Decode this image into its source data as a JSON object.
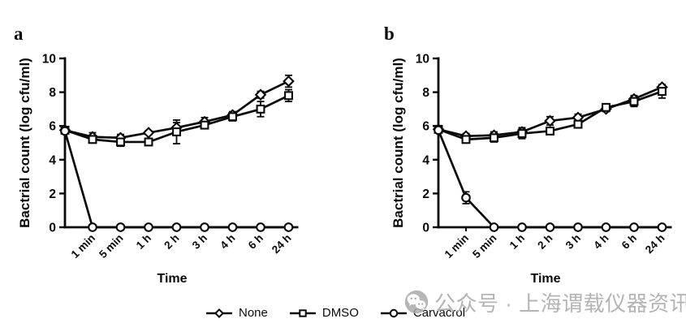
{
  "figure": {
    "background": "#ffffff",
    "line_color": "#0a0a0a"
  },
  "legend": {
    "position": "bottom",
    "items": [
      {
        "label": "None",
        "marker": "diamond"
      },
      {
        "label": "DMSO",
        "marker": "square"
      },
      {
        "label": "Carvacrol",
        "marker": "circle"
      }
    ]
  },
  "watermark": {
    "icon": "wechat-icon",
    "text": "公众号 · 上海谓载仪器资讯",
    "color": "#b4b4b4"
  },
  "chart_data": [
    {
      "type": "line",
      "panel_label": "a",
      "title": "",
      "xlabel": "Time",
      "ylabel": "Bactrial count (log cfu/ml)",
      "ylim": [
        0,
        10
      ],
      "yticks": [
        0,
        2,
        4,
        6,
        8,
        10
      ],
      "grid": false,
      "includes_time_zero_point_on_axis": true,
      "categories": [
        "1 min",
        "5 min",
        "1 h",
        "2 h",
        "3 h",
        "4 h",
        "6 h",
        "24 h"
      ],
      "series": [
        {
          "name": "None",
          "marker": "diamond",
          "values": [
            5.75,
            5.35,
            5.3,
            5.6,
            5.9,
            6.25,
            6.65,
            7.85,
            8.65
          ],
          "errors": [
            0.15,
            0.25,
            0.2,
            0.12,
            0.3,
            0.25,
            0.2,
            0.2,
            0.35
          ]
        },
        {
          "name": "DMSO",
          "marker": "square",
          "values": [
            5.75,
            5.2,
            5.05,
            5.05,
            5.65,
            6.05,
            6.55,
            7.0,
            7.8
          ],
          "errors": [
            0.15,
            0.2,
            0.25,
            0.15,
            0.7,
            0.2,
            0.25,
            0.45,
            0.35
          ]
        },
        {
          "name": "Carvacrol",
          "marker": "circle",
          "values": [
            5.7,
            0,
            0,
            0,
            0,
            0,
            0,
            0,
            0
          ],
          "errors": [
            0.15,
            0,
            0,
            0,
            0,
            0,
            0,
            0,
            0
          ]
        }
      ]
    },
    {
      "type": "line",
      "panel_label": "b",
      "title": "",
      "xlabel": "Time",
      "ylabel": "Bactrial count (log cfu/ml)",
      "ylim": [
        0,
        10
      ],
      "yticks": [
        0,
        2,
        4,
        6,
        8,
        10
      ],
      "grid": false,
      "includes_time_zero_point_on_axis": true,
      "categories": [
        "1 min",
        "5 min",
        "1 h",
        "2 h",
        "3 h",
        "4 h",
        "6 h",
        "24 h"
      ],
      "series": [
        {
          "name": "None",
          "marker": "diamond",
          "values": [
            5.8,
            5.4,
            5.45,
            5.65,
            6.3,
            6.5,
            7.0,
            7.6,
            8.3
          ],
          "errors": [
            0.15,
            0.15,
            0.2,
            0.25,
            0.25,
            0.2,
            0.15,
            0.2,
            0.15
          ]
        },
        {
          "name": "DMSO",
          "marker": "square",
          "values": [
            5.8,
            5.2,
            5.3,
            5.55,
            5.7,
            6.1,
            7.1,
            7.45,
            8.05
          ],
          "errors": [
            0.15,
            0.2,
            0.25,
            0.3,
            0.2,
            0.2,
            0.15,
            0.3,
            0.4
          ]
        },
        {
          "name": "Carvacrol",
          "marker": "circle",
          "values": [
            5.75,
            1.75,
            0,
            0,
            0,
            0,
            0,
            0,
            0
          ],
          "errors": [
            0.15,
            0.35,
            0,
            0,
            0,
            0,
            0,
            0,
            0
          ]
        }
      ]
    }
  ]
}
